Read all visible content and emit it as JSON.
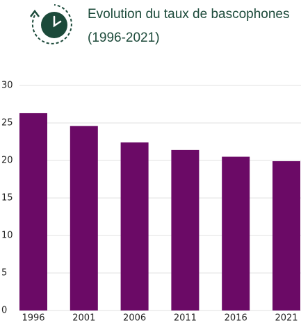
{
  "chart_data": {
    "type": "bar",
    "title": "Evolution du taux de bascophones",
    "subtitle": "(1996-2021)",
    "categories": [
      "1996",
      "2001",
      "2006",
      "2011",
      "2016",
      "2021"
    ],
    "values": [
      26.3,
      24.6,
      22.4,
      21.4,
      20.5,
      19.9
    ],
    "color": "#6b0a66",
    "ylim": [
      0,
      30
    ],
    "yticks": [
      0,
      5,
      10,
      15,
      20,
      25,
      30
    ],
    "grid": true
  }
}
